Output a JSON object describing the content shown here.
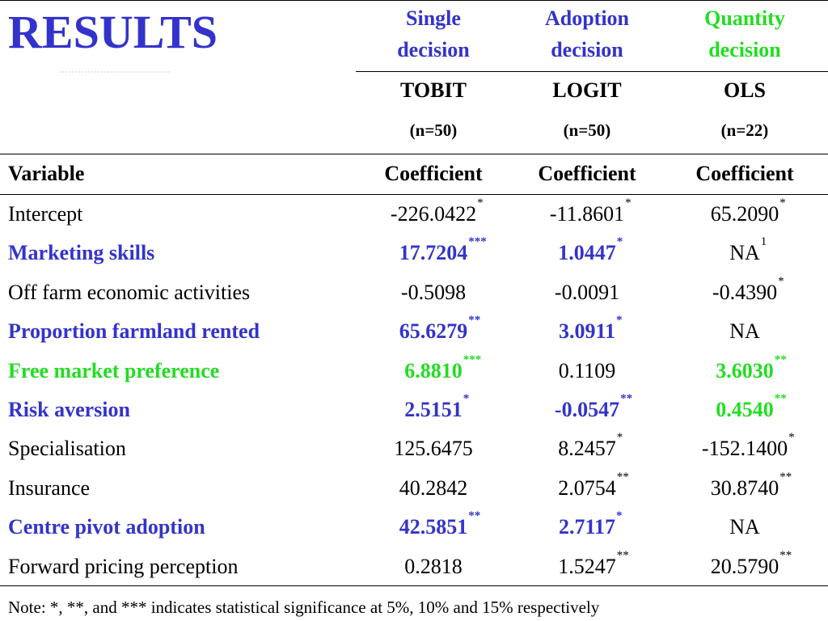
{
  "slide": {
    "title": "RESULTS"
  },
  "colors": {
    "blue": "#3333cc",
    "green": "#22dd22",
    "black": "#000000"
  },
  "columns": [
    {
      "decision_line1": "Single",
      "decision_line2": "decision",
      "method": "TOBIT",
      "n": "(n=50)",
      "coef_header": "Coefficient",
      "decision_color": "#3333cc"
    },
    {
      "decision_line1": "Adoption",
      "decision_line2": "decision",
      "method": "LOGIT",
      "n": "(n=50)",
      "coef_header": "Coefficient",
      "decision_color": "#3333cc"
    },
    {
      "decision_line1": "Quantity",
      "decision_line2": "decision",
      "method": "OLS",
      "n": "(n=22)",
      "coef_header": "Coefficient",
      "decision_color": "#22dd22"
    }
  ],
  "variable_header": "Variable",
  "rows": [
    {
      "variable": "Intercept",
      "color": "#000000",
      "bold": false,
      "values": [
        {
          "v": "-226.0422",
          "sig": "*",
          "color": "#000000",
          "bold": false
        },
        {
          "v": "-11.8601",
          "sig": "*",
          "color": "#000000",
          "bold": false
        },
        {
          "v": "65.2090",
          "sig": "*",
          "color": "#000000",
          "bold": false
        }
      ]
    },
    {
      "variable": "Marketing skills",
      "color": "#3333cc",
      "bold": true,
      "values": [
        {
          "v": "17.7204",
          "sig": "***",
          "color": "#3333cc",
          "bold": true
        },
        {
          "v": "1.0447",
          "sig": "*",
          "color": "#3333cc",
          "bold": true
        },
        {
          "v": "NA",
          "sig": "1",
          "color": "#000000",
          "bold": false
        }
      ]
    },
    {
      "variable": "Off farm economic activities",
      "color": "#000000",
      "bold": false,
      "values": [
        {
          "v": "-0.5098",
          "sig": "",
          "color": "#000000",
          "bold": false
        },
        {
          "v": "-0.0091",
          "sig": "",
          "color": "#000000",
          "bold": false
        },
        {
          "v": "-0.4390",
          "sig": "*",
          "color": "#000000",
          "bold": false
        }
      ]
    },
    {
      "variable": "Proportion farmland rented",
      "color": "#3333cc",
      "bold": true,
      "values": [
        {
          "v": "65.6279",
          "sig": "**",
          "color": "#3333cc",
          "bold": true
        },
        {
          "v": "3.0911",
          "sig": "*",
          "color": "#3333cc",
          "bold": true
        },
        {
          "v": "NA",
          "sig": "",
          "color": "#000000",
          "bold": false
        }
      ]
    },
    {
      "variable": "Free market preference",
      "color": "#22dd22",
      "bold": true,
      "values": [
        {
          "v": "6.8810",
          "sig": "***",
          "color": "#22dd22",
          "bold": true
        },
        {
          "v": "0.1109",
          "sig": "",
          "color": "#000000",
          "bold": false
        },
        {
          "v": "3.6030",
          "sig": "**",
          "color": "#22dd22",
          "bold": true
        }
      ]
    },
    {
      "variable": "Risk aversion",
      "color": "#3333cc",
      "bold": true,
      "values": [
        {
          "v": "2.5151",
          "sig": "*",
          "color": "#3333cc",
          "bold": true
        },
        {
          "v": "-0.0547",
          "sig": "**",
          "color": "#3333cc",
          "bold": true
        },
        {
          "v": "0.4540",
          "sig": "**",
          "color": "#22dd22",
          "bold": true
        }
      ]
    },
    {
      "variable": "Specialisation",
      "color": "#000000",
      "bold": false,
      "values": [
        {
          "v": "125.6475",
          "sig": "",
          "color": "#000000",
          "bold": false
        },
        {
          "v": "8.2457",
          "sig": "*",
          "color": "#000000",
          "bold": false
        },
        {
          "v": "-152.1400",
          "sig": "*",
          "color": "#000000",
          "bold": false
        }
      ]
    },
    {
      "variable": "Insurance",
      "color": "#000000",
      "bold": false,
      "values": [
        {
          "v": "40.2842",
          "sig": "",
          "color": "#000000",
          "bold": false
        },
        {
          "v": "2.0754",
          "sig": "**",
          "color": "#000000",
          "bold": false
        },
        {
          "v": "30.8740",
          "sig": "**",
          "color": "#000000",
          "bold": false
        }
      ]
    },
    {
      "variable": "Centre pivot adoption",
      "color": "#3333cc",
      "bold": true,
      "values": [
        {
          "v": "42.5851",
          "sig": "**",
          "color": "#3333cc",
          "bold": true
        },
        {
          "v": "2.7117",
          "sig": "*",
          "color": "#3333cc",
          "bold": true
        },
        {
          "v": "NA",
          "sig": "",
          "color": "#000000",
          "bold": false
        }
      ]
    },
    {
      "variable": "Forward pricing perception",
      "color": "#000000",
      "bold": false,
      "values": [
        {
          "v": "0.2818",
          "sig": "",
          "color": "#000000",
          "bold": false
        },
        {
          "v": "1.5247",
          "sig": "**",
          "color": "#000000",
          "bold": false
        },
        {
          "v": "20.5790",
          "sig": "**",
          "color": "#000000",
          "bold": false
        }
      ]
    }
  ],
  "note": "Note: *, **, and *** indicates statistical significance at 5%, 10% and 15% respectively"
}
